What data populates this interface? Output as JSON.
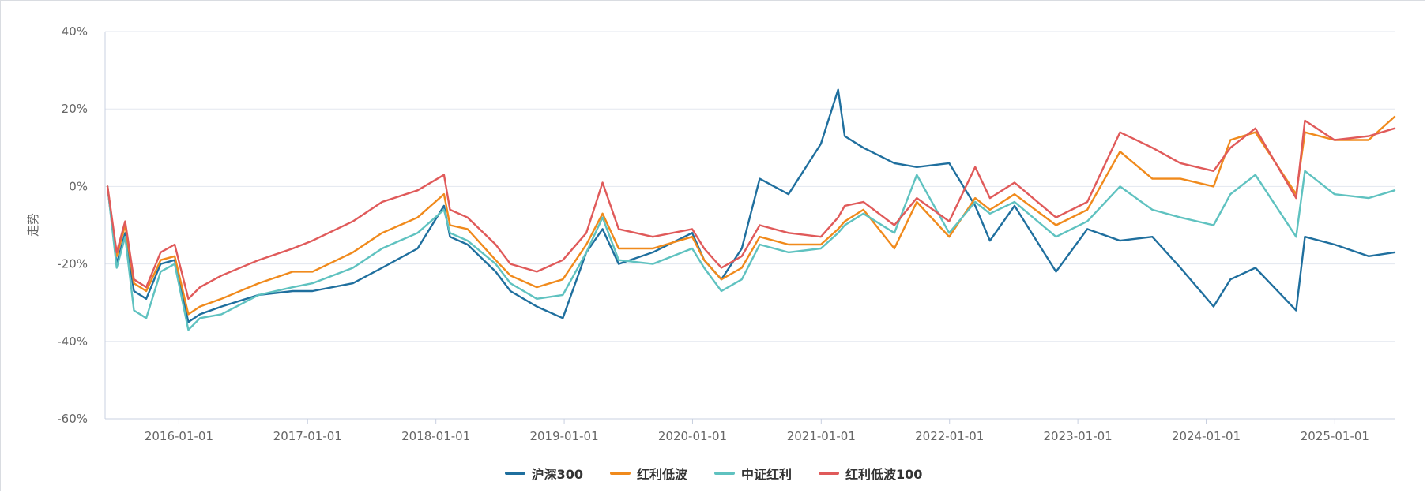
{
  "chart_data": {
    "type": "line",
    "ylabel": "走势",
    "y_ticks": [
      "40%",
      "20%",
      "0%",
      "-20%",
      "-40%",
      "-60%"
    ],
    "ylim": [
      -60,
      40
    ],
    "x_ticks": [
      "2016-01-01",
      "2017-01-01",
      "2018-01-01",
      "2019-01-01",
      "2020-01-01",
      "2021-01-01",
      "2022-01-01",
      "2023-01-01",
      "2024-01-01",
      "2025-01-01"
    ],
    "xlim": [
      "2015-06-05",
      "2025-06-20"
    ],
    "grid": "horizontal",
    "legend_position": "bottom",
    "series": [
      {
        "name": "沪深300",
        "color": "#1f6f9e",
        "points": [
          [
            "2015-06-12",
            0
          ],
          [
            "2015-07-08",
            -20
          ],
          [
            "2015-08-01",
            -12
          ],
          [
            "2015-08-26",
            -27
          ],
          [
            "2015-09-30",
            -29
          ],
          [
            "2015-11-10",
            -20
          ],
          [
            "2015-12-20",
            -19
          ],
          [
            "2016-01-28",
            -35
          ],
          [
            "2016-03-01",
            -33
          ],
          [
            "2016-05-01",
            -31
          ],
          [
            "2016-08-15",
            -28
          ],
          [
            "2016-11-20",
            -27
          ],
          [
            "2017-01-15",
            -27
          ],
          [
            "2017-05-10",
            -25
          ],
          [
            "2017-08-01",
            -21
          ],
          [
            "2017-11-10",
            -16
          ],
          [
            "2018-01-24",
            -5
          ],
          [
            "2018-02-10",
            -13
          ],
          [
            "2018-04-01",
            -15
          ],
          [
            "2018-06-20",
            -22
          ],
          [
            "2018-08-01",
            -27
          ],
          [
            "2018-10-15",
            -31
          ],
          [
            "2018-12-28",
            -34
          ],
          [
            "2019-03-05",
            -17
          ],
          [
            "2019-04-20",
            -11
          ],
          [
            "2019-06-05",
            -20
          ],
          [
            "2019-09-10",
            -17
          ],
          [
            "2019-12-31",
            -12
          ],
          [
            "2020-02-03",
            -19
          ],
          [
            "2020-03-23",
            -24
          ],
          [
            "2020-05-20",
            -16
          ],
          [
            "2020-07-10",
            2
          ],
          [
            "2020-09-30",
            -2
          ],
          [
            "2020-12-31",
            11
          ],
          [
            "2021-02-18",
            25
          ],
          [
            "2021-03-09",
            13
          ],
          [
            "2021-05-01",
            10
          ],
          [
            "2021-07-28",
            6
          ],
          [
            "2021-09-30",
            5
          ],
          [
            "2021-12-31",
            6
          ],
          [
            "2022-03-15",
            -5
          ],
          [
            "2022-04-26",
            -14
          ],
          [
            "2022-07-05",
            -5
          ],
          [
            "2022-10-31",
            -22
          ],
          [
            "2023-01-28",
            -11
          ],
          [
            "2023-05-01",
            -14
          ],
          [
            "2023-08-01",
            -13
          ],
          [
            "2023-10-20",
            -21
          ],
          [
            "2024-01-22",
            -31
          ],
          [
            "2024-03-10",
            -24
          ],
          [
            "2024-05-20",
            -21
          ],
          [
            "2024-09-13",
            -32
          ],
          [
            "2024-10-08",
            -13
          ],
          [
            "2024-12-31",
            -15
          ],
          [
            "2025-04-07",
            -18
          ],
          [
            "2025-06-20",
            -17
          ]
        ]
      },
      {
        "name": "红利低波",
        "color": "#f08a1c",
        "points": [
          [
            "2015-06-12",
            0
          ],
          [
            "2015-07-08",
            -18
          ],
          [
            "2015-08-01",
            -10
          ],
          [
            "2015-08-26",
            -25
          ],
          [
            "2015-09-30",
            -27
          ],
          [
            "2015-11-10",
            -19
          ],
          [
            "2015-12-20",
            -18
          ],
          [
            "2016-01-28",
            -33
          ],
          [
            "2016-03-01",
            -31
          ],
          [
            "2016-05-01",
            -29
          ],
          [
            "2016-08-15",
            -25
          ],
          [
            "2016-11-20",
            -22
          ],
          [
            "2017-01-15",
            -22
          ],
          [
            "2017-05-10",
            -17
          ],
          [
            "2017-08-01",
            -12
          ],
          [
            "2017-11-10",
            -8
          ],
          [
            "2018-01-24",
            -2
          ],
          [
            "2018-02-10",
            -10
          ],
          [
            "2018-04-01",
            -11
          ],
          [
            "2018-06-20",
            -19
          ],
          [
            "2018-08-01",
            -23
          ],
          [
            "2018-10-15",
            -26
          ],
          [
            "2018-12-28",
            -24
          ],
          [
            "2019-03-05",
            -15
          ],
          [
            "2019-04-20",
            -7
          ],
          [
            "2019-06-05",
            -16
          ],
          [
            "2019-09-10",
            -16
          ],
          [
            "2019-12-31",
            -13
          ],
          [
            "2020-02-03",
            -19
          ],
          [
            "2020-03-23",
            -24
          ],
          [
            "2020-05-20",
            -21
          ],
          [
            "2020-07-10",
            -13
          ],
          [
            "2020-09-30",
            -15
          ],
          [
            "2020-12-31",
            -15
          ],
          [
            "2021-02-18",
            -11
          ],
          [
            "2021-03-09",
            -9
          ],
          [
            "2021-05-01",
            -6
          ],
          [
            "2021-07-28",
            -16
          ],
          [
            "2021-09-30",
            -4
          ],
          [
            "2021-12-31",
            -13
          ],
          [
            "2022-03-15",
            -3
          ],
          [
            "2022-04-26",
            -6
          ],
          [
            "2022-07-05",
            -2
          ],
          [
            "2022-10-31",
            -10
          ],
          [
            "2023-01-28",
            -6
          ],
          [
            "2023-05-01",
            9
          ],
          [
            "2023-08-01",
            2
          ],
          [
            "2023-10-20",
            2
          ],
          [
            "2024-01-22",
            0
          ],
          [
            "2024-03-10",
            12
          ],
          [
            "2024-05-20",
            14
          ],
          [
            "2024-09-13",
            -2
          ],
          [
            "2024-10-08",
            14
          ],
          [
            "2024-12-31",
            12
          ],
          [
            "2025-04-07",
            12
          ],
          [
            "2025-06-20",
            18
          ]
        ]
      },
      {
        "name": "中证红利",
        "color": "#5fc2c0",
        "points": [
          [
            "2015-06-12",
            0
          ],
          [
            "2015-07-08",
            -21
          ],
          [
            "2015-08-01",
            -13
          ],
          [
            "2015-08-26",
            -32
          ],
          [
            "2015-09-30",
            -34
          ],
          [
            "2015-11-10",
            -22
          ],
          [
            "2015-12-20",
            -20
          ],
          [
            "2016-01-28",
            -37
          ],
          [
            "2016-03-01",
            -34
          ],
          [
            "2016-05-01",
            -33
          ],
          [
            "2016-08-15",
            -28
          ],
          [
            "2016-11-20",
            -26
          ],
          [
            "2017-01-15",
            -25
          ],
          [
            "2017-05-10",
            -21
          ],
          [
            "2017-08-01",
            -16
          ],
          [
            "2017-11-10",
            -12
          ],
          [
            "2018-01-24",
            -6
          ],
          [
            "2018-02-10",
            -12
          ],
          [
            "2018-04-01",
            -14
          ],
          [
            "2018-06-20",
            -20
          ],
          [
            "2018-08-01",
            -25
          ],
          [
            "2018-10-15",
            -29
          ],
          [
            "2018-12-28",
            -28
          ],
          [
            "2019-03-05",
            -17
          ],
          [
            "2019-04-20",
            -8
          ],
          [
            "2019-06-05",
            -19
          ],
          [
            "2019-09-10",
            -20
          ],
          [
            "2019-12-31",
            -16
          ],
          [
            "2020-02-03",
            -21
          ],
          [
            "2020-03-23",
            -27
          ],
          [
            "2020-05-20",
            -24
          ],
          [
            "2020-07-10",
            -15
          ],
          [
            "2020-09-30",
            -17
          ],
          [
            "2020-12-31",
            -16
          ],
          [
            "2021-02-18",
            -12
          ],
          [
            "2021-03-09",
            -10
          ],
          [
            "2021-05-01",
            -7
          ],
          [
            "2021-07-28",
            -12
          ],
          [
            "2021-09-30",
            3
          ],
          [
            "2021-12-31",
            -12
          ],
          [
            "2022-03-15",
            -4
          ],
          [
            "2022-04-26",
            -7
          ],
          [
            "2022-07-05",
            -4
          ],
          [
            "2022-10-31",
            -13
          ],
          [
            "2023-01-28",
            -9
          ],
          [
            "2023-05-01",
            0
          ],
          [
            "2023-08-01",
            -6
          ],
          [
            "2023-10-20",
            -8
          ],
          [
            "2024-01-22",
            -10
          ],
          [
            "2024-03-10",
            -2
          ],
          [
            "2024-05-20",
            3
          ],
          [
            "2024-09-13",
            -13
          ],
          [
            "2024-10-08",
            4
          ],
          [
            "2024-12-31",
            -2
          ],
          [
            "2025-04-07",
            -3
          ],
          [
            "2025-06-20",
            -1
          ]
        ]
      },
      {
        "name": "红利低波100",
        "color": "#e05a5a",
        "points": [
          [
            "2015-06-12",
            0
          ],
          [
            "2015-07-08",
            -17
          ],
          [
            "2015-08-01",
            -9
          ],
          [
            "2015-08-26",
            -24
          ],
          [
            "2015-09-30",
            -26
          ],
          [
            "2015-11-10",
            -17
          ],
          [
            "2015-12-20",
            -15
          ],
          [
            "2016-01-28",
            -29
          ],
          [
            "2016-03-01",
            -26
          ],
          [
            "2016-05-01",
            -23
          ],
          [
            "2016-08-15",
            -19
          ],
          [
            "2016-11-20",
            -16
          ],
          [
            "2017-01-15",
            -14
          ],
          [
            "2017-05-10",
            -9
          ],
          [
            "2017-08-01",
            -4
          ],
          [
            "2017-11-10",
            -1
          ],
          [
            "2018-01-24",
            3
          ],
          [
            "2018-02-10",
            -6
          ],
          [
            "2018-04-01",
            -8
          ],
          [
            "2018-06-20",
            -15
          ],
          [
            "2018-08-01",
            -20
          ],
          [
            "2018-10-15",
            -22
          ],
          [
            "2018-12-28",
            -19
          ],
          [
            "2019-03-05",
            -12
          ],
          [
            "2019-04-20",
            1
          ],
          [
            "2019-06-05",
            -11
          ],
          [
            "2019-09-10",
            -13
          ],
          [
            "2019-12-31",
            -11
          ],
          [
            "2020-02-03",
            -16
          ],
          [
            "2020-03-23",
            -21
          ],
          [
            "2020-05-20",
            -18
          ],
          [
            "2020-07-10",
            -10
          ],
          [
            "2020-09-30",
            -12
          ],
          [
            "2020-12-31",
            -13
          ],
          [
            "2021-02-18",
            -8
          ],
          [
            "2021-03-09",
            -5
          ],
          [
            "2021-05-01",
            -4
          ],
          [
            "2021-07-28",
            -10
          ],
          [
            "2021-09-30",
            -3
          ],
          [
            "2021-12-31",
            -9
          ],
          [
            "2022-03-15",
            5
          ],
          [
            "2022-04-26",
            -3
          ],
          [
            "2022-07-05",
            1
          ],
          [
            "2022-10-31",
            -8
          ],
          [
            "2023-01-28",
            -4
          ],
          [
            "2023-05-01",
            14
          ],
          [
            "2023-08-01",
            10
          ],
          [
            "2023-10-20",
            6
          ],
          [
            "2024-01-22",
            4
          ],
          [
            "2024-03-10",
            10
          ],
          [
            "2024-05-20",
            15
          ],
          [
            "2024-09-13",
            -3
          ],
          [
            "2024-10-08",
            17
          ],
          [
            "2024-12-31",
            12
          ],
          [
            "2025-04-07",
            13
          ],
          [
            "2025-06-20",
            15
          ]
        ]
      }
    ]
  }
}
